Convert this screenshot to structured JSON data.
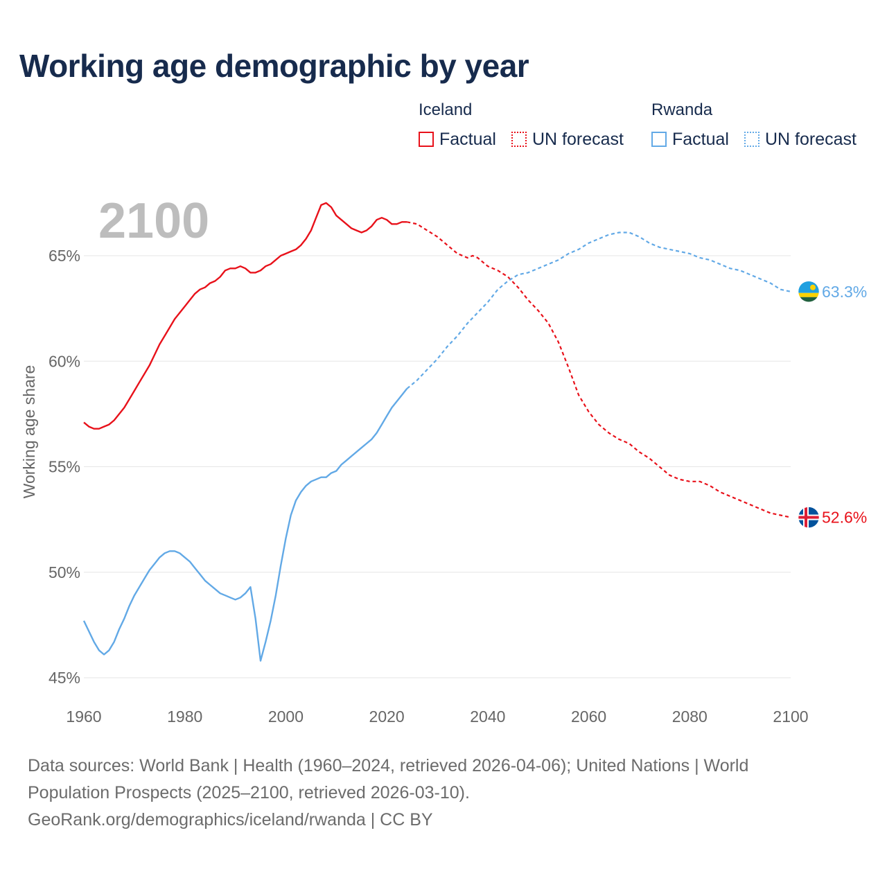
{
  "title": "Working age demographic by year",
  "legend": {
    "groups": [
      {
        "name": "Iceland",
        "factual": "Factual",
        "forecast": "UN forecast",
        "color": "#e8111a"
      },
      {
        "name": "Rwanda",
        "factual": "Factual",
        "forecast": "UN forecast",
        "color": "#62a9e6"
      }
    ]
  },
  "footer": {
    "line1": "Data sources: World Bank | Health (1960–2024, retrieved 2026-04-06); United Nations | World",
    "line2": "Population Prospects (2025–2100, retrieved 2026-03-10).",
    "line3": "GeoRank.org/demographics/iceland/rwanda | CC BY"
  },
  "chart_data": {
    "type": "line",
    "title": "Working age demographic by year",
    "year_label": "2100",
    "xlabel": "",
    "ylabel": "Working age share",
    "xlim": [
      1960,
      2100
    ],
    "ylim": [
      45,
      68
    ],
    "xticks": [
      1960,
      1980,
      2000,
      2020,
      2040,
      2060,
      2080,
      2100
    ],
    "x_tick_labels": [
      "1960",
      "1980",
      "2000",
      "2020",
      "2040",
      "2060",
      "2080",
      "2100"
    ],
    "yticks": [
      45,
      50,
      55,
      60,
      65
    ],
    "y_tick_labels": [
      "45%",
      "50%",
      "55%",
      "60%",
      "65%"
    ],
    "forecast_start": 2024,
    "series": [
      {
        "name": "Iceland",
        "color": "#e8111a",
        "flag": "iceland-flag",
        "end_label": "52.6%",
        "x": [
          1960,
          1961,
          1962,
          1963,
          1964,
          1965,
          1966,
          1967,
          1968,
          1969,
          1970,
          1971,
          1972,
          1973,
          1974,
          1975,
          1976,
          1977,
          1978,
          1979,
          1980,
          1981,
          1982,
          1983,
          1984,
          1985,
          1986,
          1987,
          1988,
          1989,
          1990,
          1991,
          1992,
          1993,
          1994,
          1995,
          1996,
          1997,
          1998,
          1999,
          2000,
          2001,
          2002,
          2003,
          2004,
          2005,
          2006,
          2007,
          2008,
          2009,
          2010,
          2011,
          2012,
          2013,
          2014,
          2015,
          2016,
          2017,
          2018,
          2019,
          2020,
          2021,
          2022,
          2023,
          2024,
          2026,
          2028,
          2030,
          2032,
          2034,
          2036,
          2037,
          2038,
          2040,
          2042,
          2044,
          2046,
          2048,
          2050,
          2052,
          2054,
          2056,
          2058,
          2060,
          2062,
          2064,
          2066,
          2068,
          2070,
          2072,
          2074,
          2076,
          2078,
          2080,
          2082,
          2084,
          2086,
          2088,
          2090,
          2092,
          2094,
          2096,
          2098,
          2100
        ],
        "y": [
          57.1,
          56.9,
          56.8,
          56.8,
          56.9,
          57.0,
          57.2,
          57.5,
          57.8,
          58.2,
          58.6,
          59.0,
          59.4,
          59.8,
          60.3,
          60.8,
          61.2,
          61.6,
          62.0,
          62.3,
          62.6,
          62.9,
          63.2,
          63.4,
          63.5,
          63.7,
          63.8,
          64.0,
          64.3,
          64.4,
          64.4,
          64.5,
          64.4,
          64.2,
          64.2,
          64.3,
          64.5,
          64.6,
          64.8,
          65.0,
          65.1,
          65.2,
          65.3,
          65.5,
          65.8,
          66.2,
          66.8,
          67.4,
          67.5,
          67.3,
          66.9,
          66.7,
          66.5,
          66.3,
          66.2,
          66.1,
          66.2,
          66.4,
          66.7,
          66.8,
          66.7,
          66.5,
          66.5,
          66.6,
          66.6,
          66.5,
          66.2,
          65.9,
          65.5,
          65.1,
          64.9,
          65.0,
          64.9,
          64.5,
          64.3,
          64.0,
          63.5,
          62.9,
          62.4,
          61.8,
          60.9,
          59.7,
          58.4,
          57.6,
          57.0,
          56.6,
          56.3,
          56.1,
          55.7,
          55.4,
          55.0,
          54.6,
          54.4,
          54.3,
          54.3,
          54.1,
          53.8,
          53.6,
          53.4,
          53.2,
          53.0,
          52.8,
          52.7,
          52.6
        ]
      },
      {
        "name": "Rwanda",
        "color": "#62a9e6",
        "flag": "rwanda-flag",
        "end_label": "63.3%",
        "x": [
          1960,
          1961,
          1962,
          1963,
          1964,
          1965,
          1966,
          1967,
          1968,
          1969,
          1970,
          1971,
          1972,
          1973,
          1974,
          1975,
          1976,
          1977,
          1978,
          1979,
          1980,
          1981,
          1982,
          1983,
          1984,
          1985,
          1986,
          1987,
          1988,
          1989,
          1990,
          1991,
          1992,
          1993,
          1994,
          1995,
          1996,
          1997,
          1998,
          1999,
          2000,
          2001,
          2002,
          2003,
          2004,
          2005,
          2006,
          2007,
          2008,
          2009,
          2010,
          2011,
          2012,
          2013,
          2014,
          2015,
          2016,
          2017,
          2018,
          2019,
          2020,
          2021,
          2022,
          2023,
          2024,
          2026,
          2028,
          2030,
          2032,
          2034,
          2036,
          2038,
          2040,
          2042,
          2044,
          2046,
          2048,
          2050,
          2052,
          2054,
          2056,
          2058,
          2060,
          2062,
          2064,
          2066,
          2068,
          2070,
          2072,
          2074,
          2076,
          2078,
          2080,
          2082,
          2084,
          2086,
          2088,
          2090,
          2092,
          2094,
          2096,
          2098,
          2100
        ],
        "y": [
          47.7,
          47.2,
          46.7,
          46.3,
          46.1,
          46.3,
          46.7,
          47.3,
          47.8,
          48.4,
          48.9,
          49.3,
          49.7,
          50.1,
          50.4,
          50.7,
          50.9,
          51.0,
          51.0,
          50.9,
          50.7,
          50.5,
          50.2,
          49.9,
          49.6,
          49.4,
          49.2,
          49.0,
          48.9,
          48.8,
          48.7,
          48.8,
          49.0,
          49.3,
          47.8,
          45.8,
          46.7,
          47.7,
          48.9,
          50.3,
          51.6,
          52.7,
          53.4,
          53.8,
          54.1,
          54.3,
          54.4,
          54.5,
          54.5,
          54.7,
          54.8,
          55.1,
          55.3,
          55.5,
          55.7,
          55.9,
          56.1,
          56.3,
          56.6,
          57.0,
          57.4,
          57.8,
          58.1,
          58.4,
          58.7,
          59.1,
          59.6,
          60.1,
          60.7,
          61.2,
          61.8,
          62.3,
          62.8,
          63.4,
          63.8,
          64.1,
          64.2,
          64.4,
          64.6,
          64.8,
          65.1,
          65.3,
          65.6,
          65.8,
          66.0,
          66.1,
          66.1,
          65.9,
          65.6,
          65.4,
          65.3,
          65.2,
          65.1,
          64.9,
          64.8,
          64.6,
          64.4,
          64.3,
          64.1,
          63.9,
          63.7,
          63.4,
          63.3
        ]
      }
    ]
  }
}
